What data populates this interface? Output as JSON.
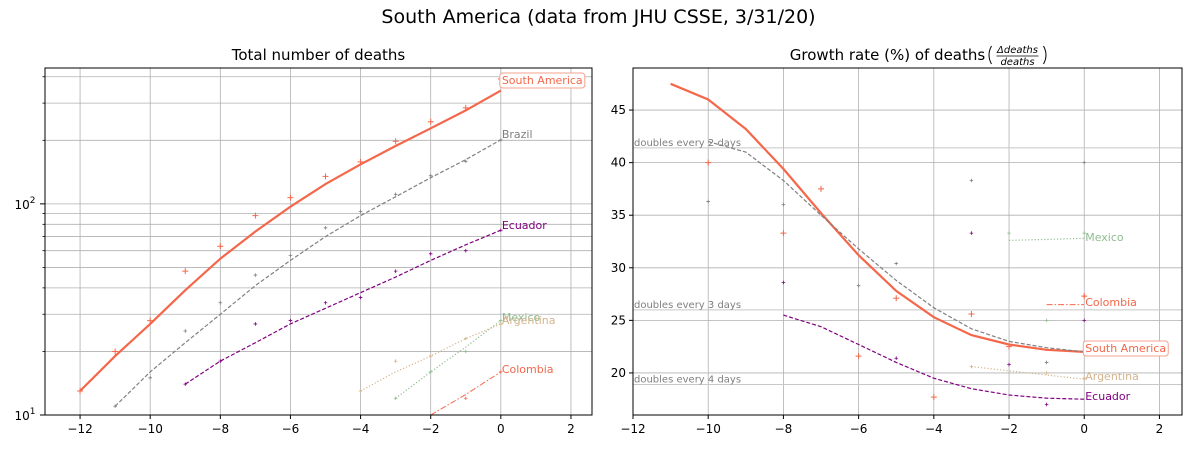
{
  "figure_title": "South America (data from JHU CSSE, 3/31/20)",
  "chart_data": [
    {
      "type": "line",
      "title": "Total number of deaths",
      "xlabel": "",
      "ylabel": "",
      "yscale": "log",
      "xlim": [
        -13,
        2.6
      ],
      "ylim": [
        10,
        440
      ],
      "grid": true,
      "xticks": [
        -12,
        -10,
        -8,
        -6,
        -4,
        -2,
        0,
        2
      ],
      "xtick_labels": [
        "−12",
        "−10",
        "−8",
        "−6",
        "−4",
        "−2",
        "0",
        "2"
      ],
      "ytick_labels": [
        {
          "value": 10,
          "base": "10",
          "exp": "1"
        },
        {
          "value": 100,
          "base": "10",
          "exp": "2"
        }
      ],
      "series": [
        {
          "name": "South America",
          "color": "#f4674a",
          "style": "solid",
          "width": 2.2,
          "x": [
            -12,
            -11,
            -10,
            -9,
            -8,
            -7,
            -6,
            -5,
            -4,
            -3,
            -2,
            -1,
            0
          ],
          "y": [
            13,
            19,
            27,
            39,
            55,
            74,
            97,
            124,
            154,
            188,
            228,
            277,
            344
          ],
          "points_x": [
            -12,
            -11,
            -10,
            -9,
            -8,
            -7,
            -6,
            -5,
            -4,
            -3,
            -2,
            -1,
            0
          ],
          "points_y": [
            13,
            20,
            28,
            48,
            63,
            88,
            107,
            135,
            158,
            198,
            245,
            285,
            390
          ],
          "label": "South America",
          "label_box": true
        },
        {
          "name": "Brazil",
          "color": "#808080",
          "style": "dashed",
          "width": 1.2,
          "x": [
            -11,
            -10,
            -9,
            -8,
            -7,
            -6,
            -5,
            -4,
            -3,
            -2,
            -1,
            0
          ],
          "y": [
            11,
            16,
            22,
            30,
            41,
            54,
            70,
            88,
            108,
            133,
            162,
            201
          ],
          "points_x": [
            -11,
            -10,
            -9,
            -8,
            -7,
            -6,
            -5,
            -4,
            -3,
            -2,
            -1,
            0
          ],
          "points_y": [
            11,
            15,
            25,
            34,
            46,
            57,
            77,
            92,
            111,
            136,
            159,
            201
          ],
          "label": "Brazil",
          "label_box": false
        },
        {
          "name": "Ecuador",
          "color": "#800080",
          "style": "dashed",
          "width": 1.2,
          "x": [
            -9,
            -8,
            -7,
            -6,
            -5,
            -4,
            -3,
            -2,
            -1,
            0
          ],
          "y": [
            14,
            18,
            22,
            27,
            32,
            38,
            45,
            54,
            64,
            75
          ],
          "points_x": [
            -9,
            -8,
            -7,
            -6,
            -5,
            -4,
            -3,
            -2,
            -1,
            0
          ],
          "points_y": [
            14,
            18,
            27,
            28,
            34,
            36,
            48,
            58,
            60,
            75
          ],
          "label": "Ecuador",
          "label_box": false
        },
        {
          "name": "Mexico",
          "color": "#8fbc8f",
          "style": "dotted",
          "width": 1.2,
          "x": [
            -3,
            -2,
            -1,
            0
          ],
          "y": [
            12,
            16,
            21,
            28
          ],
          "points_x": [
            -3,
            -2,
            -1,
            0
          ],
          "points_y": [
            12,
            16,
            20,
            28
          ],
          "label": "Mexico",
          "label_box": false
        },
        {
          "name": "Argentina",
          "color": "#d2b48c",
          "style": "dotted",
          "width": 1.2,
          "x": [
            -4,
            -3,
            -2,
            -1,
            0
          ],
          "y": [
            13,
            16,
            19,
            23,
            27
          ],
          "points_x": [
            -4,
            -3,
            -2,
            -1,
            0
          ],
          "points_y": [
            13,
            18,
            19,
            23,
            27
          ],
          "label": "Argentina",
          "label_box": false
        },
        {
          "name": "Colombia",
          "color": "#f4674a",
          "style": "dashdot",
          "width": 1.0,
          "x": [
            -2,
            -1,
            0
          ],
          "y": [
            10,
            12.5,
            16
          ],
          "points_x": [
            -1,
            0
          ],
          "points_y": [
            12,
            16
          ],
          "label": "Colombia",
          "label_box": false
        }
      ]
    },
    {
      "type": "line",
      "title": "Growth rate (%) of deaths",
      "title_fraction_num": "Δdeaths",
      "title_fraction_den": "deaths",
      "xlabel": "",
      "ylabel": "",
      "xlim": [
        -12,
        2.6
      ],
      "ylim": [
        16,
        49
      ],
      "grid": true,
      "xticks": [
        -12,
        -10,
        -8,
        -6,
        -4,
        -2,
        0,
        2
      ],
      "xtick_labels": [
        "−12",
        "−10",
        "−8",
        "−6",
        "−4",
        "−2",
        "0",
        "2"
      ],
      "yticks": [
        20,
        25,
        30,
        35,
        40,
        45
      ],
      "ytick_labels": [
        "20",
        "25",
        "30",
        "35",
        "40",
        "45"
      ],
      "reference_lines": [
        {
          "y": 41.4,
          "label": "doubles every 2 days"
        },
        {
          "y": 26.0,
          "label": "doubles every 3 days"
        },
        {
          "y": 18.9,
          "label": "doubles every 4 days"
        }
      ],
      "series": [
        {
          "name": "South America",
          "color": "#f4674a",
          "style": "solid",
          "width": 2.2,
          "x": [
            -11,
            -10,
            -9,
            -8,
            -7,
            -6,
            -5,
            -4,
            -3,
            -2,
            -1,
            0
          ],
          "y": [
            47.5,
            46,
            43.2,
            39.4,
            35.2,
            31.2,
            27.8,
            25.3,
            23.6,
            22.7,
            22.2,
            22
          ],
          "points_x": [
            -10,
            -8,
            -7,
            -6,
            -5,
            -4,
            -3,
            -2,
            0
          ],
          "points_y": [
            40,
            33.3,
            37.5,
            21.6,
            27.1,
            17.7,
            25.6,
            22.5,
            27.3
          ],
          "label": "South America",
          "label_box": true
        },
        {
          "name": "Brazil",
          "color": "#808080",
          "style": "dashed",
          "width": 1.2,
          "x": [
            -10,
            -9,
            -8,
            -7,
            -6,
            -5,
            -4,
            -3,
            -2,
            -1,
            0
          ],
          "y": [
            42,
            41,
            38.3,
            35,
            31.8,
            28.8,
            26.2,
            24.2,
            23,
            22.4,
            22
          ],
          "points_x": [
            -10,
            -8,
            -6,
            -5,
            -3,
            -1,
            0
          ],
          "points_y": [
            36.3,
            36,
            28.3,
            30.4,
            38.3,
            21,
            40
          ],
          "label": "",
          "label_box": false
        },
        {
          "name": "Ecuador",
          "color": "#800080",
          "style": "dashed",
          "width": 1.2,
          "x": [
            -8,
            -7,
            -6,
            -5,
            -4,
            -3,
            -2,
            -1,
            0
          ],
          "y": [
            25.5,
            24.4,
            22.7,
            21,
            19.5,
            18.5,
            17.9,
            17.6,
            17.5
          ],
          "points_x": [
            -8,
            -5,
            -3,
            -2,
            -1,
            0
          ],
          "points_y": [
            28.6,
            21.4,
            33.3,
            20.8,
            17,
            25
          ],
          "label": "Ecuador",
          "label_box": false
        },
        {
          "name": "Mexico",
          "color": "#8fbc8f",
          "style": "dotted",
          "width": 1.2,
          "x": [
            -2,
            -1,
            0
          ],
          "y": [
            32.6,
            32.7,
            32.8
          ],
          "points_x": [
            -2,
            -1,
            0
          ],
          "points_y": [
            33.3,
            25,
            33.3
          ],
          "label": "Mexico",
          "label_box": false
        },
        {
          "name": "Argentina",
          "color": "#d2b48c",
          "style": "dotted",
          "width": 1.2,
          "x": [
            -3,
            -2,
            -1,
            0
          ],
          "y": [
            20.6,
            20.2,
            19.8,
            19.4
          ],
          "points_x": [
            -3,
            -1,
            0
          ],
          "points_y": [
            20.6,
            20,
            19.5
          ],
          "label": "Argentina",
          "label_box": false
        },
        {
          "name": "Colombia",
          "color": "#f4674a",
          "style": "dashdot",
          "width": 1.0,
          "x": [
            -1,
            0
          ],
          "y": [
            26.5,
            26.5
          ],
          "points_x": [
            0
          ],
          "points_y": [
            27.3
          ],
          "label": "Colombia",
          "label_box": false
        }
      ]
    }
  ]
}
